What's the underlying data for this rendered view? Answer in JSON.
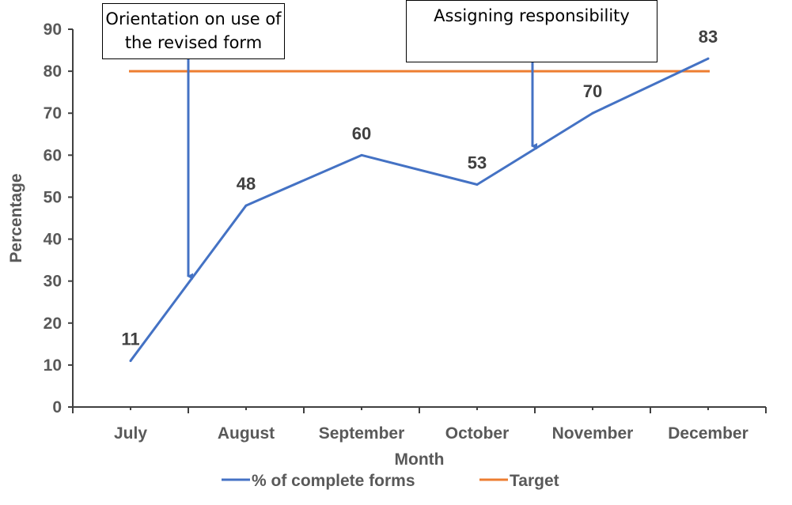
{
  "chart_data": {
    "type": "line",
    "title": "",
    "xlabel": "Month",
    "ylabel": "Percentage",
    "categories": [
      "July",
      "August",
      "September",
      "October",
      "November",
      "December"
    ],
    "ylim": [
      0,
      90
    ],
    "yticks": [
      "0",
      "10",
      "20",
      "30",
      "40",
      "50",
      "60",
      "70",
      "80",
      "90"
    ],
    "grid": false,
    "legend_position": "bottom",
    "series": [
      {
        "name": "% of complete forms",
        "values": [
          11,
          48,
          60,
          53,
          70,
          83
        ],
        "color": "#4472C4",
        "data_labels": [
          "11",
          "48",
          "60",
          "53",
          "70",
          "83"
        ]
      },
      {
        "name": "Target",
        "values": [
          80,
          80,
          80,
          80,
          80,
          80
        ],
        "color": "#ED7D31"
      }
    ],
    "annotations": [
      {
        "text": "Orientation on use of the revised form",
        "line1": "Orientation on use of",
        "line2": "the revised form",
        "between": [
          "July",
          "August"
        ],
        "points_to": 30
      },
      {
        "text": "Assigning responsibility",
        "line1": "Assigning responsibility",
        "between": [
          "October",
          "November"
        ],
        "points_to": 61
      }
    ]
  }
}
